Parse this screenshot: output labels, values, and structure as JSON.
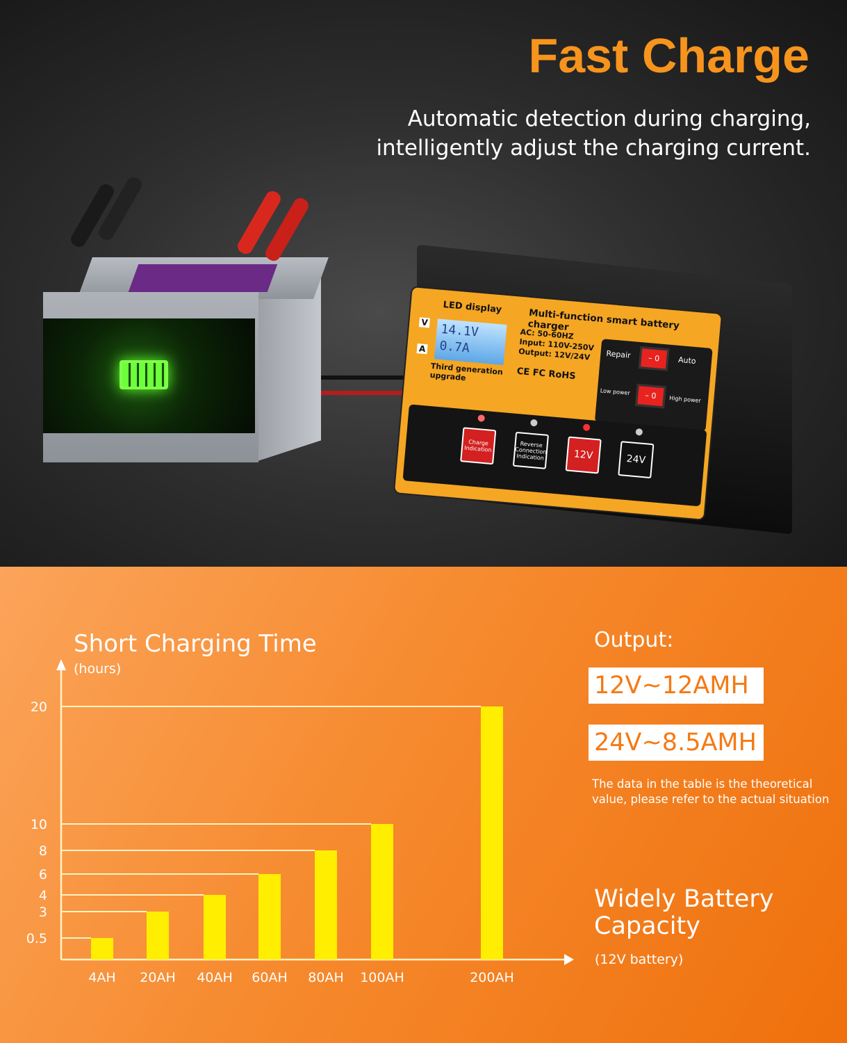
{
  "header": {
    "title": "Fast Charge",
    "subtitle": "Automatic detection during charging, intelligently adjust the charging current."
  },
  "charger": {
    "led_label": "LED display",
    "v_label": "V",
    "a_label": "A",
    "lcd_voltage": "14.1V",
    "lcd_current": "0.7A",
    "product_name": "Multi-function smart battery charger",
    "spec_ac": "AC: 50-60HZ",
    "spec_input": "Input: 110V-250V",
    "spec_output": "Output: 12V/24V",
    "upgrade": "Third generation upgrade",
    "certs": "CE FC RoHS",
    "switch1_left": "Repair",
    "switch1_right": "Auto",
    "switch2_left": "Low power",
    "switch2_right": "High power",
    "switch_glyph": "– 0",
    "buttons": [
      "Charge Indication",
      "Reverse Connection Indication",
      "12V",
      "24V"
    ]
  },
  "output": {
    "label": "Output:",
    "line1": "12V~12AMH",
    "line2": "24V~8.5AMH",
    "note": "The data in the table is the theoretical value, please refer to the actual situation"
  },
  "capacity": {
    "label": "Widely Battery Capacity",
    "sub": "(12V battery)"
  },
  "colors": {
    "accent": "#f7941d",
    "bar": "#ffee00",
    "axis": "#fff3c4",
    "output_text": "#f47a14"
  },
  "chart_data": {
    "type": "bar",
    "title": "Short Charging Time",
    "ylabel": "(hours)",
    "xlabel": "",
    "categories": [
      "4AH",
      "20AH",
      "40AH",
      "60AH",
      "80AH",
      "100AH",
      "200AH"
    ],
    "values": [
      0.5,
      3,
      4,
      6,
      8,
      10,
      20
    ],
    "y_ticks": [
      "0.5",
      "3",
      "4",
      "6",
      "8",
      "10",
      "20"
    ],
    "y_scale": "non-linear (ticks at bar values)",
    "grid": "horizontal guide line from axis to each bar top",
    "legend": "none"
  }
}
